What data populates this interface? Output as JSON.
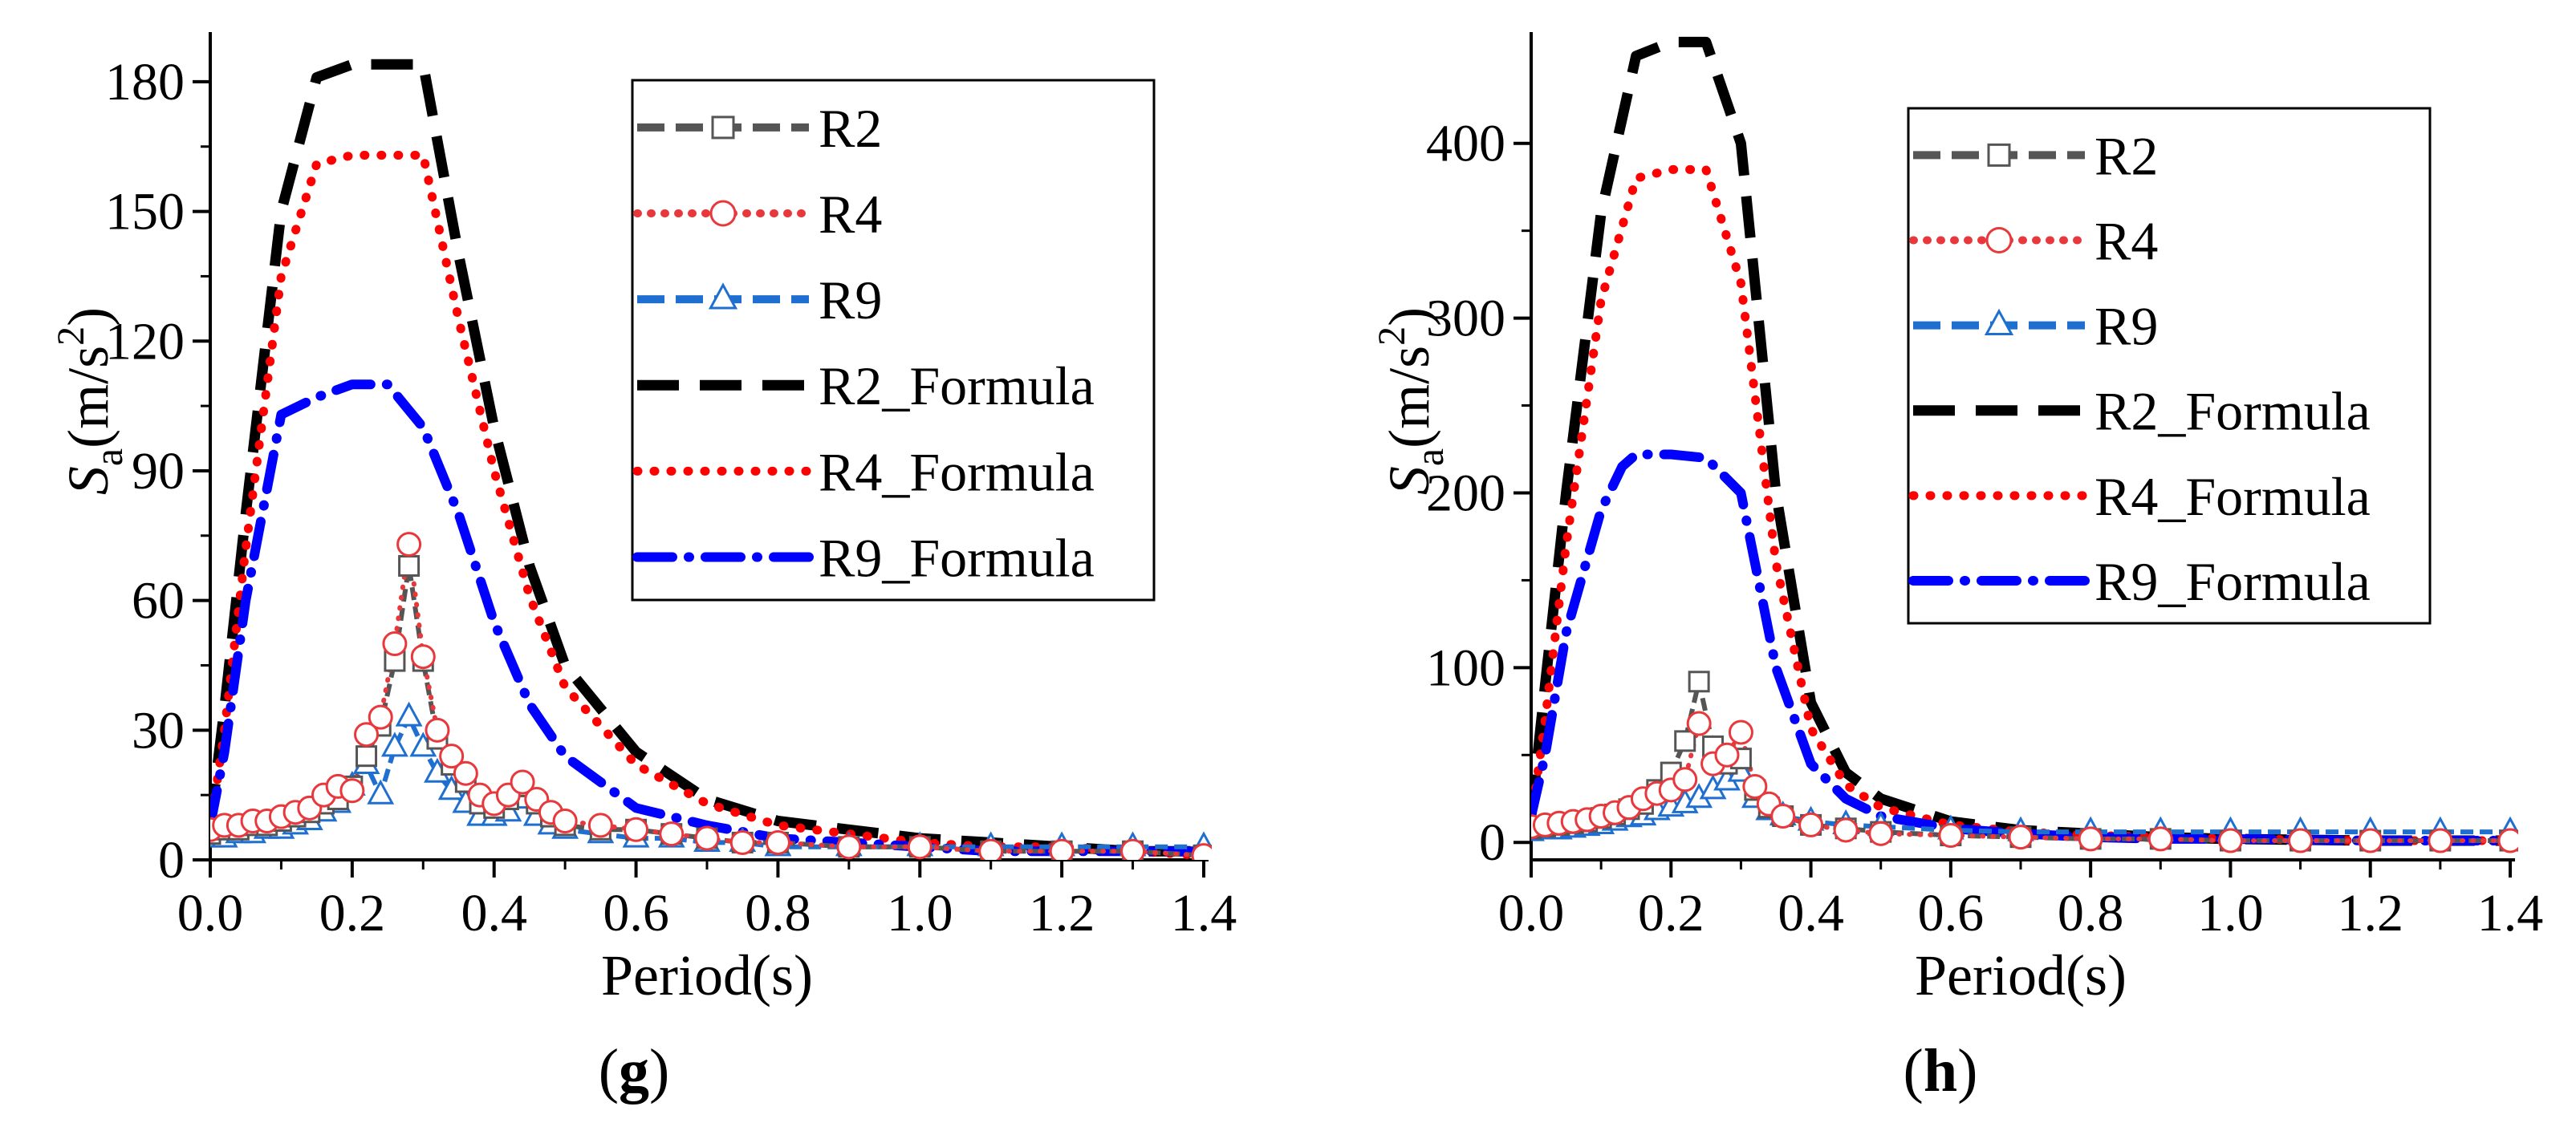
{
  "chart_data": [
    {
      "panel_label": "g",
      "type": "line",
      "xlabel": "Period(s)",
      "ylabel": "S",
      "ylabel_sub": "a",
      "ylabel_unit": "(m/s",
      "ylabel_sup": "2",
      "ylabel_close": ")",
      "xlim": [
        0,
        1.4
      ],
      "ylim": [
        0,
        190
      ],
      "xticks": [
        0.0,
        0.2,
        0.4,
        0.6,
        0.8,
        1.0,
        1.2,
        1.4
      ],
      "xtick_labels": [
        "0.0",
        "0.2",
        "0.4",
        "0.6",
        "0.8",
        "1.0",
        "1.2",
        "1.4"
      ],
      "yticks": [
        0,
        30,
        60,
        90,
        120,
        150,
        180
      ],
      "ytick_labels": [
        "0",
        "30",
        "60",
        "90",
        "120",
        "150",
        "180"
      ],
      "legend_position": "top-right",
      "series": [
        {
          "name": "R2",
          "color": "#555555",
          "style": "dash",
          "marker": "square",
          "x": [
            0.0,
            0.02,
            0.04,
            0.06,
            0.08,
            0.1,
            0.12,
            0.14,
            0.16,
            0.18,
            0.2,
            0.22,
            0.24,
            0.26,
            0.28,
            0.3,
            0.32,
            0.34,
            0.36,
            0.38,
            0.4,
            0.42,
            0.44,
            0.46,
            0.48,
            0.5,
            0.55,
            0.6,
            0.65,
            0.7,
            0.75,
            0.8,
            0.9,
            1.0,
            1.1,
            1.2,
            1.3,
            1.4
          ],
          "y": [
            6,
            7,
            7,
            8,
            8,
            9,
            10,
            11,
            13,
            14,
            17,
            24,
            31,
            46,
            68,
            46,
            28,
            22,
            18,
            13,
            12,
            14,
            17,
            13,
            10,
            8,
            7,
            7,
            6,
            5,
            4,
            4,
            3,
            3,
            2,
            2,
            2,
            1
          ]
        },
        {
          "name": "R4",
          "color": "#e8383b",
          "style": "dot",
          "marker": "circle",
          "x": [
            0.0,
            0.02,
            0.04,
            0.06,
            0.08,
            0.1,
            0.12,
            0.14,
            0.16,
            0.18,
            0.2,
            0.22,
            0.24,
            0.26,
            0.28,
            0.3,
            0.32,
            0.34,
            0.36,
            0.38,
            0.4,
            0.42,
            0.44,
            0.46,
            0.48,
            0.5,
            0.55,
            0.6,
            0.65,
            0.7,
            0.75,
            0.8,
            0.9,
            1.0,
            1.1,
            1.2,
            1.3,
            1.4
          ],
          "y": [
            7,
            8,
            8,
            9,
            9,
            10,
            11,
            12,
            15,
            17,
            16,
            29,
            33,
            50,
            73,
            47,
            30,
            24,
            20,
            15,
            13,
            15,
            18,
            14,
            11,
            9,
            8,
            7,
            6,
            5,
            4,
            4,
            3,
            3,
            2,
            2,
            2,
            1
          ]
        },
        {
          "name": "R9",
          "color": "#1f6fd1",
          "style": "dash",
          "marker": "triangle",
          "x": [
            0.0,
            0.02,
            0.04,
            0.06,
            0.08,
            0.1,
            0.12,
            0.14,
            0.16,
            0.18,
            0.2,
            0.22,
            0.24,
            0.26,
            0.28,
            0.3,
            0.32,
            0.34,
            0.36,
            0.38,
            0.4,
            0.42,
            0.44,
            0.46,
            0.48,
            0.5,
            0.55,
            0.6,
            0.65,
            0.7,
            0.75,
            0.8,
            0.9,
            1.0,
            1.1,
            1.2,
            1.3,
            1.4
          ],
          "y": [
            5,
            5,
            6,
            6,
            7,
            7,
            8,
            9,
            11,
            13,
            17,
            22,
            15,
            26,
            33,
            26,
            20,
            16,
            13,
            10,
            10,
            11,
            14,
            10,
            8,
            7,
            6,
            5,
            5,
            4,
            4,
            3,
            3,
            3,
            3,
            3,
            3,
            3
          ]
        },
        {
          "name": "R2_Formula",
          "color": "#000000",
          "style": "longdash",
          "marker": "none",
          "x": [
            0.0,
            0.02,
            0.05,
            0.1,
            0.15,
            0.2,
            0.3,
            0.35,
            0.4,
            0.45,
            0.5,
            0.6,
            0.7,
            0.8,
            0.9,
            1.0,
            1.1,
            1.2,
            1.3,
            1.4
          ],
          "y": [
            8,
            35,
            80,
            150,
            181,
            184,
            184,
            140,
            100,
            68,
            45,
            25,
            14,
            9,
            7,
            5,
            4,
            3,
            2,
            2
          ]
        },
        {
          "name": "R4_Formula",
          "color": "#ff0000",
          "style": "dot",
          "marker": "none",
          "x": [
            0.0,
            0.02,
            0.05,
            0.1,
            0.15,
            0.2,
            0.3,
            0.35,
            0.4,
            0.45,
            0.5,
            0.6,
            0.7,
            0.8,
            0.9,
            1.0,
            1.1,
            1.2,
            1.3,
            1.4
          ],
          "y": [
            7,
            30,
            72,
            135,
            161,
            163,
            163,
            125,
            90,
            61,
            40,
            22,
            13,
            8,
            6,
            4,
            3,
            3,
            2,
            1
          ]
        },
        {
          "name": "R9_Formula",
          "color": "#0000ff",
          "style": "dashdot",
          "marker": "none",
          "x": [
            0.0,
            0.02,
            0.05,
            0.1,
            0.15,
            0.2,
            0.25,
            0.3,
            0.35,
            0.4,
            0.45,
            0.5,
            0.6,
            0.7,
            0.8,
            0.9,
            1.0,
            1.1,
            1.2,
            1.3,
            1.4
          ],
          "y": [
            8,
            25,
            60,
            103,
            107,
            110,
            110,
            100,
            80,
            55,
            36,
            24,
            12,
            8,
            5,
            4,
            3,
            2,
            2,
            2,
            2
          ]
        }
      ]
    },
    {
      "panel_label": "h",
      "type": "line",
      "xlabel": "Period(s)",
      "ylabel": "S",
      "ylabel_sub": "a",
      "ylabel_unit": "(m/s",
      "ylabel_sup": "2",
      "ylabel_close": ")",
      "xlim": [
        0,
        1.4
      ],
      "ylim": [
        -10,
        460
      ],
      "xticks": [
        0.0,
        0.2,
        0.4,
        0.6,
        0.8,
        1.0,
        1.2,
        1.4
      ],
      "xtick_labels": [
        "0.0",
        "0.2",
        "0.4",
        "0.6",
        "0.8",
        "1.0",
        "1.2",
        "1.4"
      ],
      "yticks": [
        0,
        100,
        200,
        300,
        400
      ],
      "ytick_labels": [
        "0",
        "100",
        "200",
        "300",
        "400"
      ],
      "legend_position": "top-right",
      "series": [
        {
          "name": "R2",
          "color": "#555555",
          "style": "dash",
          "marker": "square",
          "x": [
            0.0,
            0.02,
            0.04,
            0.06,
            0.08,
            0.1,
            0.12,
            0.14,
            0.16,
            0.18,
            0.2,
            0.22,
            0.24,
            0.26,
            0.28,
            0.3,
            0.32,
            0.34,
            0.36,
            0.4,
            0.45,
            0.5,
            0.6,
            0.7,
            0.8,
            0.9,
            1.0,
            1.1,
            1.2,
            1.3,
            1.4
          ],
          "y": [
            8,
            9,
            10,
            11,
            12,
            14,
            16,
            19,
            22,
            30,
            40,
            58,
            92,
            55,
            45,
            48,
            30,
            20,
            15,
            10,
            8,
            6,
            4,
            3,
            2,
            2,
            1,
            1,
            1,
            1,
            1
          ]
        },
        {
          "name": "R4",
          "color": "#e8383b",
          "style": "dot",
          "marker": "circle",
          "x": [
            0.0,
            0.02,
            0.04,
            0.06,
            0.08,
            0.1,
            0.12,
            0.14,
            0.16,
            0.18,
            0.2,
            0.22,
            0.24,
            0.26,
            0.28,
            0.3,
            0.32,
            0.34,
            0.36,
            0.4,
            0.45,
            0.5,
            0.6,
            0.7,
            0.8,
            0.9,
            1.0,
            1.1,
            1.2,
            1.3,
            1.4
          ],
          "y": [
            9,
            10,
            11,
            12,
            13,
            15,
            17,
            20,
            25,
            28,
            30,
            36,
            68,
            45,
            50,
            63,
            32,
            22,
            15,
            10,
            7,
            5,
            4,
            3,
            2,
            2,
            1,
            1,
            1,
            1,
            1
          ]
        },
        {
          "name": "R9",
          "color": "#1f6fd1",
          "style": "dash",
          "marker": "triangle",
          "x": [
            0.0,
            0.02,
            0.04,
            0.06,
            0.08,
            0.1,
            0.12,
            0.14,
            0.16,
            0.18,
            0.2,
            0.22,
            0.24,
            0.26,
            0.28,
            0.3,
            0.32,
            0.34,
            0.36,
            0.4,
            0.45,
            0.5,
            0.6,
            0.7,
            0.8,
            0.9,
            1.0,
            1.1,
            1.2,
            1.3,
            1.4
          ],
          "y": [
            6,
            7,
            7,
            8,
            9,
            10,
            12,
            14,
            15,
            18,
            20,
            22,
            25,
            30,
            35,
            40,
            25,
            18,
            15,
            12,
            10,
            9,
            7,
            6,
            6,
            6,
            6,
            6,
            6,
            6,
            6
          ]
        },
        {
          "name": "R2_Formula",
          "color": "#000000",
          "style": "longdash",
          "marker": "none",
          "x": [
            0.0,
            0.02,
            0.05,
            0.1,
            0.15,
            0.2,
            0.25,
            0.3,
            0.35,
            0.4,
            0.45,
            0.5,
            0.6,
            0.7,
            0.8,
            0.9,
            1.0,
            1.2,
            1.4
          ],
          "y": [
            15,
            90,
            200,
            360,
            450,
            458,
            458,
            400,
            200,
            80,
            40,
            25,
            12,
            7,
            5,
            3,
            2,
            1,
            1
          ]
        },
        {
          "name": "R4_Formula",
          "color": "#ff0000",
          "style": "dot",
          "marker": "none",
          "x": [
            0.0,
            0.02,
            0.05,
            0.1,
            0.15,
            0.2,
            0.25,
            0.3,
            0.35,
            0.4,
            0.45,
            0.5,
            0.6,
            0.7,
            0.8,
            0.9,
            1.0,
            1.2,
            1.4
          ],
          "y": [
            12,
            70,
            170,
            310,
            380,
            385,
            385,
            320,
            160,
            65,
            33,
            20,
            10,
            6,
            4,
            3,
            2,
            1,
            1
          ]
        },
        {
          "name": "R9_Formula",
          "color": "#0000ff",
          "style": "dashdot",
          "marker": "none",
          "x": [
            0.0,
            0.02,
            0.05,
            0.1,
            0.13,
            0.15,
            0.2,
            0.25,
            0.3,
            0.35,
            0.4,
            0.45,
            0.5,
            0.6,
            0.7,
            0.8,
            0.9,
            1.0,
            1.2,
            1.4
          ],
          "y": [
            15,
            50,
            120,
            190,
            215,
            222,
            222,
            220,
            200,
            100,
            45,
            25,
            15,
            8,
            5,
            3,
            2,
            2,
            1,
            1
          ]
        }
      ]
    }
  ]
}
